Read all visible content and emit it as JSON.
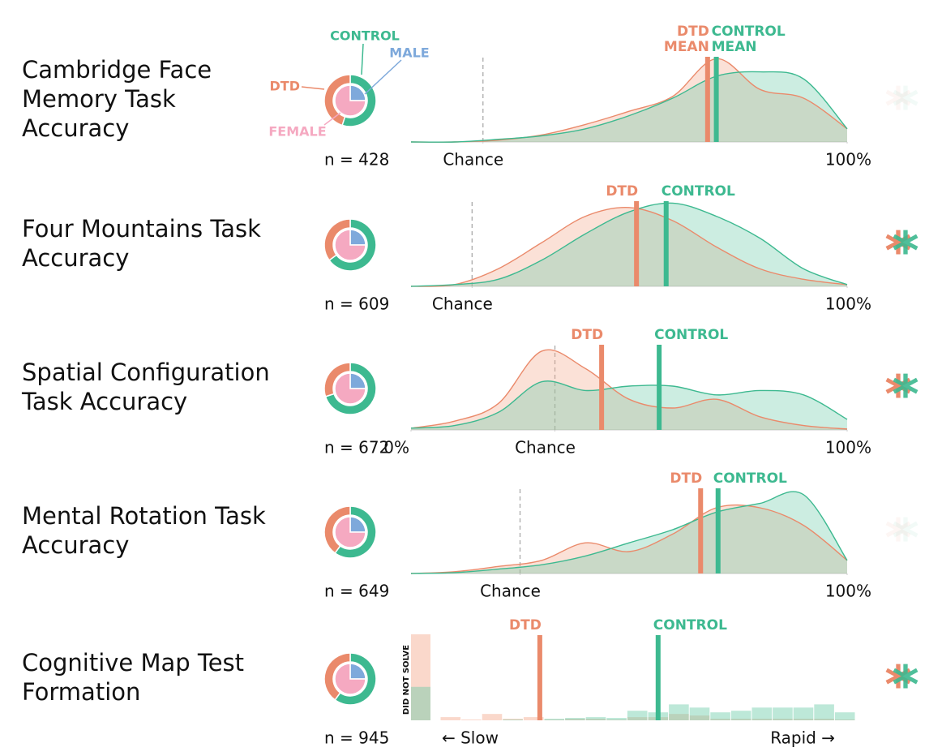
{
  "chart_data": [
    {
      "type": "density",
      "title": [
        "Cambridge Face",
        "Memory Task",
        "Accuracy"
      ],
      "donut": {
        "outer": [
          {
            "name": "DTD",
            "color": "#ea8a6b",
            "value": 45
          },
          {
            "name": "CONTROL",
            "color": "#3db990",
            "value": 55
          }
        ],
        "inner": [
          {
            "name": "MALE",
            "color": "#7ea9db",
            "value": 25
          },
          {
            "name": "FEMALE",
            "color": "#f5a9c1",
            "value": 75
          }
        ]
      },
      "n_label": "n = 428",
      "x": [
        0,
        10,
        20,
        30,
        40,
        50,
        60,
        70,
        80,
        90,
        100
      ],
      "xlim": [
        0,
        100
      ],
      "ylim": [
        0,
        1
      ],
      "chance": 16.5,
      "xticks": [
        {
          "value": 16.5,
          "label": "Chance"
        },
        {
          "value": 100,
          "label": "100%"
        }
      ],
      "series": [
        {
          "color": "#ea8a6b",
          "values": [
            0,
            0,
            0.02,
            0.08,
            0.2,
            0.35,
            0.52,
            0.95,
            0.6,
            0.5,
            0.15
          ],
          "mean": 68,
          "mean_label": [
            "DTD",
            "MEAN"
          ]
        },
        {
          "color": "#3db990",
          "values": [
            0,
            0,
            0.03,
            0.07,
            0.15,
            0.3,
            0.5,
            0.75,
            0.8,
            0.72,
            0.15
          ],
          "mean": 70,
          "mean_label": [
            "CONTROL",
            "MEAN"
          ]
        }
      ],
      "significance": {
        "marker": "*",
        "significant": false
      }
    },
    {
      "type": "density",
      "title": [
        "Four Mountains Task",
        "Accuracy"
      ],
      "donut": {
        "outer": [
          {
            "color": "#ea8a6b",
            "value": 35
          },
          {
            "color": "#3db990",
            "value": 65
          }
        ],
        "inner": [
          {
            "color": "#7ea9db",
            "value": 25
          },
          {
            "color": "#f5a9c1",
            "value": 75
          }
        ]
      },
      "n_label": "n = 609",
      "x": [
        0,
        10,
        20,
        30,
        40,
        50,
        60,
        70,
        80,
        90,
        100
      ],
      "xlim": [
        0,
        100
      ],
      "ylim": [
        0,
        1
      ],
      "chance": 14,
      "xticks": [
        {
          "value": 14,
          "label": "Chance"
        },
        {
          "value": 100,
          "label": "100%"
        }
      ],
      "series": [
        {
          "color": "#ea8a6b",
          "values": [
            0,
            0.02,
            0.2,
            0.5,
            0.8,
            0.9,
            0.75,
            0.45,
            0.2,
            0.08,
            0.02
          ],
          "mean": 51.7,
          "mean_label": [
            "DTD"
          ]
        },
        {
          "color": "#3db990",
          "values": [
            0,
            0.02,
            0.08,
            0.3,
            0.6,
            0.85,
            0.95,
            0.8,
            0.55,
            0.2,
            0.02
          ],
          "mean": 58.5,
          "mean_label": [
            "CONTROL"
          ]
        }
      ],
      "significance": {
        "marker": "*",
        "significant": true
      }
    },
    {
      "type": "density",
      "title": [
        "Spatial Configuration",
        "Task Accuracy"
      ],
      "donut": {
        "outer": [
          {
            "color": "#ea8a6b",
            "value": 30
          },
          {
            "color": "#3db990",
            "value": 70
          }
        ],
        "inner": [
          {
            "color": "#7ea9db",
            "value": 25
          },
          {
            "color": "#f5a9c1",
            "value": 75
          }
        ]
      },
      "n_label": "n = 672",
      "x": [
        0,
        10,
        20,
        30,
        40,
        50,
        60,
        70,
        80,
        90,
        100
      ],
      "xlim": [
        0,
        100
      ],
      "ylim": [
        0,
        1
      ],
      "chance": 33,
      "xticks": [
        {
          "value": 0,
          "label": "0%"
        },
        {
          "value": 33,
          "label": "Chance"
        },
        {
          "value": 100,
          "label": "100%"
        }
      ],
      "series": [
        {
          "color": "#ea8a6b",
          "values": [
            0.02,
            0.1,
            0.3,
            0.9,
            0.7,
            0.35,
            0.25,
            0.35,
            0.15,
            0.05,
            0.01
          ],
          "mean": 43.7,
          "mean_label": [
            "DTD"
          ]
        },
        {
          "color": "#3db990",
          "values": [
            0.02,
            0.05,
            0.2,
            0.55,
            0.45,
            0.5,
            0.5,
            0.4,
            0.45,
            0.4,
            0.12
          ],
          "mean": 56.9,
          "mean_label": [
            "CONTROL"
          ]
        }
      ],
      "significance": {
        "marker": "*",
        "significant": true
      }
    },
    {
      "type": "density",
      "title": [
        "Mental Rotation Task",
        "Accuracy"
      ],
      "donut": {
        "outer": [
          {
            "color": "#ea8a6b",
            "value": 40
          },
          {
            "color": "#3db990",
            "value": 60
          }
        ],
        "inner": [
          {
            "color": "#7ea9db",
            "value": 25
          },
          {
            "color": "#f5a9c1",
            "value": 75
          }
        ]
      },
      "n_label": "n = 649",
      "x": [
        0,
        10,
        20,
        30,
        40,
        50,
        60,
        70,
        80,
        90,
        100
      ],
      "xlim": [
        0,
        100
      ],
      "ylim": [
        0,
        1
      ],
      "chance": 25,
      "xticks": [
        {
          "value": 25,
          "label": "Chance"
        },
        {
          "value": 100,
          "label": "100%"
        }
      ],
      "series": [
        {
          "color": "#ea8a6b",
          "values": [
            0,
            0.02,
            0.08,
            0.15,
            0.35,
            0.25,
            0.45,
            0.75,
            0.75,
            0.55,
            0.15
          ],
          "mean": 66.4,
          "mean_label": [
            "DTD"
          ]
        },
        {
          "color": "#3db990",
          "values": [
            0,
            0.01,
            0.05,
            0.1,
            0.2,
            0.35,
            0.5,
            0.7,
            0.8,
            0.9,
            0.15
          ],
          "mean": 70.4,
          "mean_label": [
            "CONTROL"
          ]
        }
      ],
      "significance": {
        "marker": "*",
        "significant": false
      }
    },
    {
      "type": "histogram",
      "title": [
        "Cognitive Map Test",
        "Formation"
      ],
      "donut": {
        "outer": [
          {
            "color": "#ea8a6b",
            "value": 40
          },
          {
            "color": "#3db990",
            "value": 60
          }
        ],
        "inner": [
          {
            "color": "#7ea9db",
            "value": 25
          },
          {
            "color": "#f5a9c1",
            "value": 75
          }
        ]
      },
      "n_label": "n = 945",
      "bins": [
        0,
        1,
        2,
        3,
        4,
        5,
        6,
        7,
        8,
        9,
        10,
        11,
        12,
        13,
        14,
        15,
        16,
        17,
        18,
        19,
        20
      ],
      "xlim": [
        0,
        20
      ],
      "ylim": [
        0,
        5.5
      ],
      "x_end_labels": [
        "← Slow",
        "Rapid →"
      ],
      "did_not_solve_label": "DID NOT SOLVE",
      "series": [
        {
          "color": "#ea8a6b",
          "values": [
            0.2,
            0.05,
            0.4,
            0.1,
            0.2,
            0.05,
            0.1,
            0.1,
            0.05,
            0.2,
            0.2,
            0.4,
            0.3,
            0.1,
            0.1,
            0.1,
            0.1,
            0.1,
            0.1,
            0.05
          ],
          "did_not_solve": 5.4,
          "mean": 4.8,
          "mean_label": [
            "DTD"
          ]
        },
        {
          "color": "#3db990",
          "values": [
            0,
            0,
            0,
            0.05,
            0,
            0.1,
            0.15,
            0.2,
            0.15,
            0.6,
            0.5,
            1,
            0.8,
            0.5,
            0.6,
            0.8,
            0.8,
            0.8,
            1,
            0.5
          ],
          "did_not_solve": 2.1,
          "mean": 10.5,
          "mean_label": [
            "CONTROL"
          ]
        }
      ],
      "significance": {
        "marker": "*",
        "significant": true
      }
    }
  ]
}
